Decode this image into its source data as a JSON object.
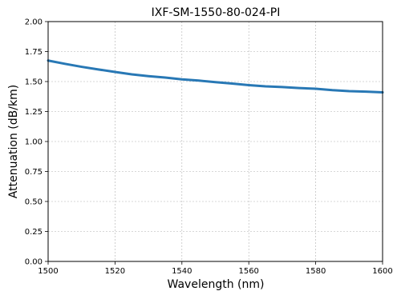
{
  "chart_data": {
    "type": "line",
    "title": "IXF-SM-1550-80-024-PI",
    "xlabel": "Wavelength (nm)",
    "ylabel": "Attenuation (dB/km)",
    "xlim": [
      1500,
      1600
    ],
    "ylim": [
      0.0,
      2.0
    ],
    "xticks": [
      1500,
      1520,
      1540,
      1560,
      1580,
      1600
    ],
    "yticks": [
      0.0,
      0.25,
      0.5,
      0.75,
      1.0,
      1.25,
      1.5,
      1.75,
      2.0
    ],
    "ytick_labels": [
      "0.00",
      "0.25",
      "0.50",
      "0.75",
      "1.00",
      "1.25",
      "1.50",
      "1.75",
      "2.00"
    ],
    "grid": true,
    "line_color": "#2878b5",
    "series": [
      {
        "x": [
          1500,
          1505,
          1510,
          1515,
          1520,
          1525,
          1530,
          1535,
          1540,
          1545,
          1550,
          1555,
          1560,
          1565,
          1570,
          1575,
          1580,
          1585,
          1590,
          1595,
          1600
        ],
        "values": [
          1.675,
          1.648,
          1.623,
          1.601,
          1.58,
          1.56,
          1.545,
          1.533,
          1.518,
          1.508,
          1.495,
          1.483,
          1.47,
          1.46,
          1.454,
          1.446,
          1.44,
          1.428,
          1.42,
          1.416,
          1.41
        ]
      }
    ]
  }
}
